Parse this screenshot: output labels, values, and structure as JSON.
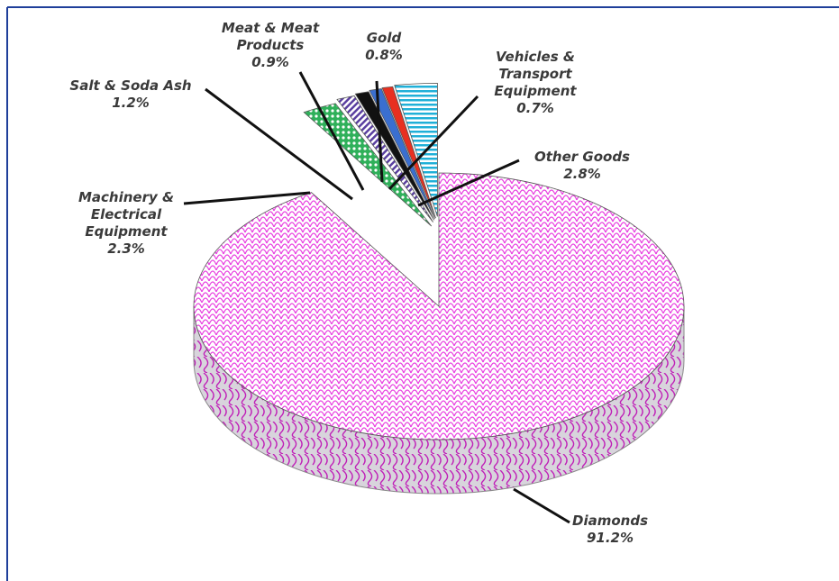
{
  "chart_data": {
    "type": "pie",
    "three_d": true,
    "legend": "none",
    "slices": [
      {
        "label_lines": [
          "Diamonds"
        ],
        "value": 91.2,
        "value_text": "91.2%",
        "color": "#e83fe0",
        "pattern": "scales"
      },
      {
        "label_lines": [
          "Machinery &",
          "Electrical",
          "Equipment"
        ],
        "value": 2.3,
        "value_text": "2.3%",
        "color": "#2fb05a",
        "pattern": "dots"
      },
      {
        "label_lines": [
          "Salt & Soda Ash"
        ],
        "value": 1.2,
        "value_text": "1.2%",
        "color": "#5a3fa0",
        "pattern": "diagonal"
      },
      {
        "label_lines": [
          "Meat & Meat",
          "Products"
        ],
        "value": 0.9,
        "value_text": "0.9%",
        "color": "#111111",
        "pattern": "solid"
      },
      {
        "label_lines": [
          "Gold"
        ],
        "value": 0.8,
        "value_text": "0.8%",
        "color": "#3a6fd0",
        "pattern": "solid"
      },
      {
        "label_lines": [
          "Vehicles &",
          "Transport",
          "Equipment"
        ],
        "value": 0.7,
        "value_text": "0.7%",
        "color": "#e83020",
        "pattern": "solid"
      },
      {
        "label_lines": [
          "Other Goods"
        ],
        "value": 2.8,
        "value_text": "2.8%",
        "color": "#20b0d8",
        "pattern": "horizontal"
      }
    ]
  },
  "colors": {
    "frame_border": "#1f3f9a",
    "label_text": "#3a3a3a",
    "leader_line": "#111111"
  }
}
